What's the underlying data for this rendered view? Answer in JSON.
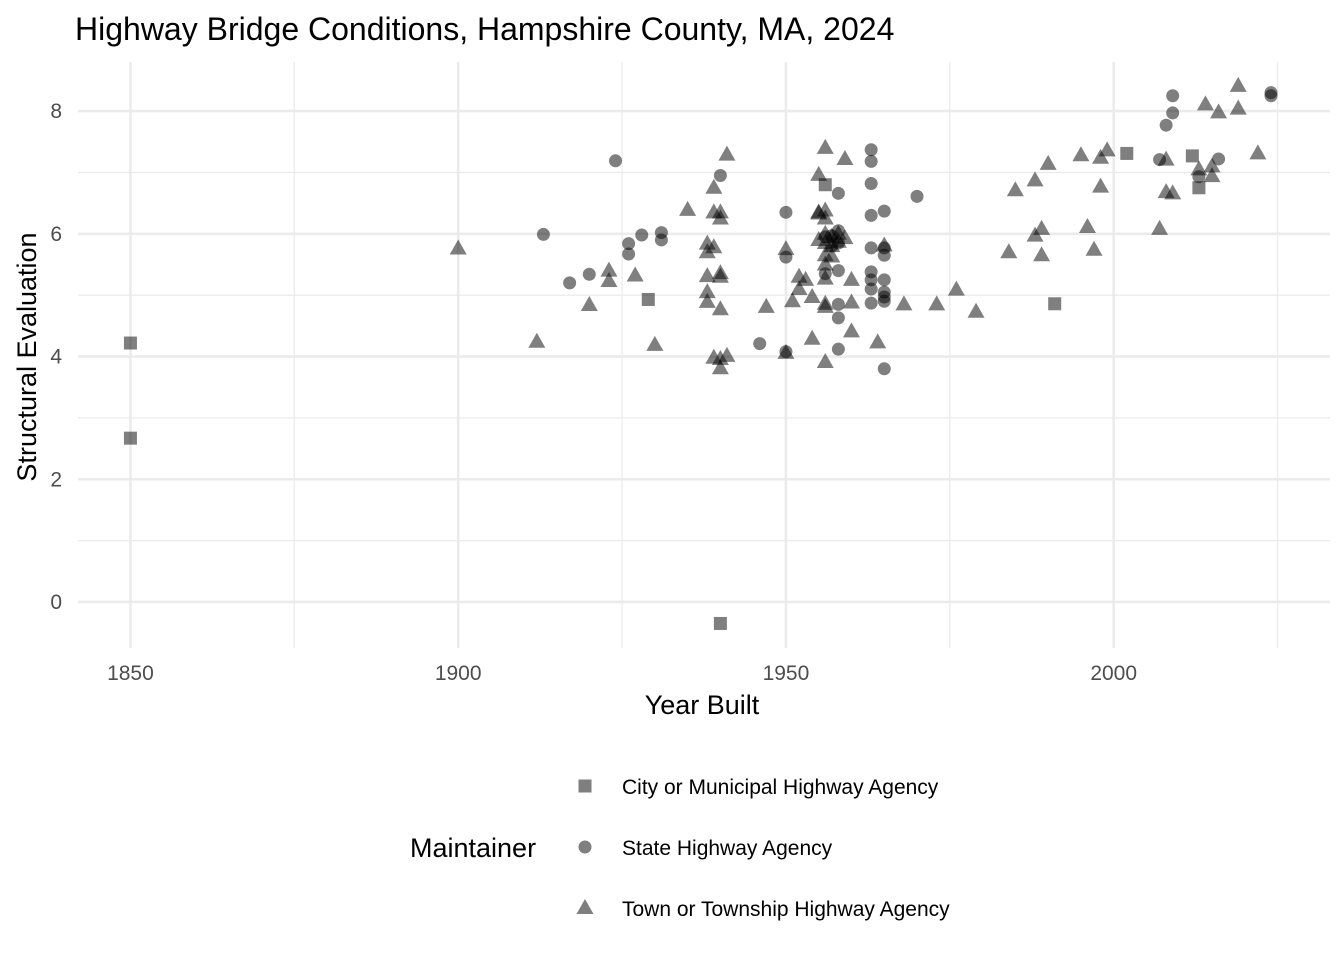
{
  "chart_data": {
    "type": "scatter",
    "title": "Highway Bridge Conditions, Hampshire County, MA, 2024",
    "xlabel": "Year Built",
    "ylabel": "Structural Evaluation",
    "xlim": [
      1842,
      2033
    ],
    "ylim": [
      -0.75,
      8.8
    ],
    "x_ticks": [
      1850,
      1900,
      1950,
      2000
    ],
    "y_ticks": [
      0,
      2,
      4,
      6,
      8
    ],
    "grid": true,
    "legend": {
      "title": "Maintainer",
      "position": "bottom"
    },
    "point_color": "#000000",
    "point_opacity": 0.5,
    "series": [
      {
        "name": "City or Municipal Highway Agency",
        "shape": "square",
        "points": [
          [
            1850,
            4.22
          ],
          [
            1850,
            2.67
          ],
          [
            1929,
            4.93
          ],
          [
            1940,
            -0.35
          ],
          [
            1956,
            6.8
          ],
          [
            1991,
            4.86
          ],
          [
            2002,
            7.31
          ],
          [
            2012,
            7.27
          ],
          [
            2013,
            6.75
          ]
        ]
      },
      {
        "name": "State Highway Agency",
        "shape": "circle",
        "points": [
          [
            1913,
            5.99
          ],
          [
            1917,
            5.2
          ],
          [
            1920,
            5.34
          ],
          [
            1924,
            7.19
          ],
          [
            1926,
            5.84
          ],
          [
            1926,
            5.67
          ],
          [
            1928,
            5.98
          ],
          [
            1931,
            6.02
          ],
          [
            1931,
            5.9
          ],
          [
            1940,
            6.95
          ],
          [
            1946,
            4.21
          ],
          [
            1950,
            6.35
          ],
          [
            1950,
            5.62
          ],
          [
            1950,
            4.08
          ],
          [
            1956,
            5.35
          ],
          [
            1956,
            5.95
          ],
          [
            1957,
            5.97
          ],
          [
            1957,
            5.8
          ],
          [
            1958,
            6.66
          ],
          [
            1958,
            6.05
          ],
          [
            1958,
            5.85
          ],
          [
            1958,
            5.4
          ],
          [
            1958,
            4.85
          ],
          [
            1958,
            4.63
          ],
          [
            1958,
            4.12
          ],
          [
            1963,
            7.37
          ],
          [
            1963,
            6.82
          ],
          [
            1963,
            7.18
          ],
          [
            1963,
            6.3
          ],
          [
            1963,
            5.77
          ],
          [
            1963,
            5.38
          ],
          [
            1963,
            5.25
          ],
          [
            1963,
            5.1
          ],
          [
            1963,
            4.87
          ],
          [
            1965,
            6.37
          ],
          [
            1965,
            5.77
          ],
          [
            1965,
            5.65
          ],
          [
            1965,
            5.25
          ],
          [
            1965,
            5.05
          ],
          [
            1965,
            4.97
          ],
          [
            1965,
            4.9
          ],
          [
            1965,
            3.8
          ],
          [
            1970,
            6.61
          ],
          [
            2007,
            7.21
          ],
          [
            2008,
            7.77
          ],
          [
            2009,
            7.97
          ],
          [
            2009,
            8.25
          ],
          [
            2013,
            6.93
          ],
          [
            2016,
            7.22
          ],
          [
            2024,
            8.25
          ],
          [
            2024,
            8.3
          ]
        ]
      },
      {
        "name": "Town or Township Highway Agency",
        "shape": "triangle",
        "points": [
          [
            1900,
            5.76
          ],
          [
            1912,
            4.24
          ],
          [
            1920,
            4.84
          ],
          [
            1923,
            5.4
          ],
          [
            1923,
            5.23
          ],
          [
            1927,
            5.32
          ],
          [
            1930,
            4.19
          ],
          [
            1935,
            6.39
          ],
          [
            1938,
            5.84
          ],
          [
            1938,
            5.7
          ],
          [
            1938,
            5.31
          ],
          [
            1938,
            5.05
          ],
          [
            1938,
            4.89
          ],
          [
            1939,
            6.75
          ],
          [
            1939,
            6.35
          ],
          [
            1939,
            5.78
          ],
          [
            1939,
            3.98
          ],
          [
            1940,
            6.35
          ],
          [
            1940,
            6.25
          ],
          [
            1940,
            5.36
          ],
          [
            1940,
            5.3
          ],
          [
            1940,
            4.77
          ],
          [
            1940,
            3.96
          ],
          [
            1940,
            3.81
          ],
          [
            1941,
            7.29
          ],
          [
            1941,
            4.01
          ],
          [
            1947,
            4.81
          ],
          [
            1950,
            5.75
          ],
          [
            1950,
            4.06
          ],
          [
            1951,
            4.9
          ],
          [
            1952,
            5.3
          ],
          [
            1952,
            5.1
          ],
          [
            1953,
            5.25
          ],
          [
            1954,
            4.97
          ],
          [
            1954,
            4.29
          ],
          [
            1955,
            6.33
          ],
          [
            1955,
            6.96
          ],
          [
            1955,
            6.35
          ],
          [
            1955,
            5.9
          ],
          [
            1956,
            7.4
          ],
          [
            1956,
            6.38
          ],
          [
            1956,
            6.25
          ],
          [
            1956,
            6.0
          ],
          [
            1956,
            5.85
          ],
          [
            1956,
            5.65
          ],
          [
            1956,
            5.5
          ],
          [
            1956,
            5.27
          ],
          [
            1956,
            4.86
          ],
          [
            1956,
            4.81
          ],
          [
            1956,
            3.91
          ],
          [
            1957,
            5.95
          ],
          [
            1957,
            5.8
          ],
          [
            1957,
            5.63
          ],
          [
            1958,
            6.0
          ],
          [
            1958,
            5.87
          ],
          [
            1959,
            7.22
          ],
          [
            1959,
            5.93
          ],
          [
            1960,
            5.25
          ],
          [
            1960,
            4.88
          ],
          [
            1960,
            4.41
          ],
          [
            1964,
            4.23
          ],
          [
            1965,
            5.81
          ],
          [
            1968,
            4.85
          ],
          [
            1973,
            4.85
          ],
          [
            1976,
            5.09
          ],
          [
            1979,
            4.73
          ],
          [
            1984,
            5.7
          ],
          [
            1985,
            6.71
          ],
          [
            1988,
            6.87
          ],
          [
            1988,
            5.97
          ],
          [
            1989,
            5.65
          ],
          [
            1989,
            6.08
          ],
          [
            1990,
            7.14
          ],
          [
            1995,
            7.28
          ],
          [
            1996,
            6.11
          ],
          [
            1997,
            5.74
          ],
          [
            1998,
            7.24
          ],
          [
            1998,
            6.77
          ],
          [
            1999,
            7.36
          ],
          [
            2007,
            6.08
          ],
          [
            2008,
            6.68
          ],
          [
            2008,
            7.21
          ],
          [
            2009,
            6.66
          ],
          [
            2013,
            7.05
          ],
          [
            2014,
            8.11
          ],
          [
            2015,
            6.94
          ],
          [
            2015,
            7.1
          ],
          [
            2016,
            7.98
          ],
          [
            2019,
            8.04
          ],
          [
            2019,
            8.41
          ],
          [
            2022,
            7.31
          ]
        ]
      }
    ]
  }
}
